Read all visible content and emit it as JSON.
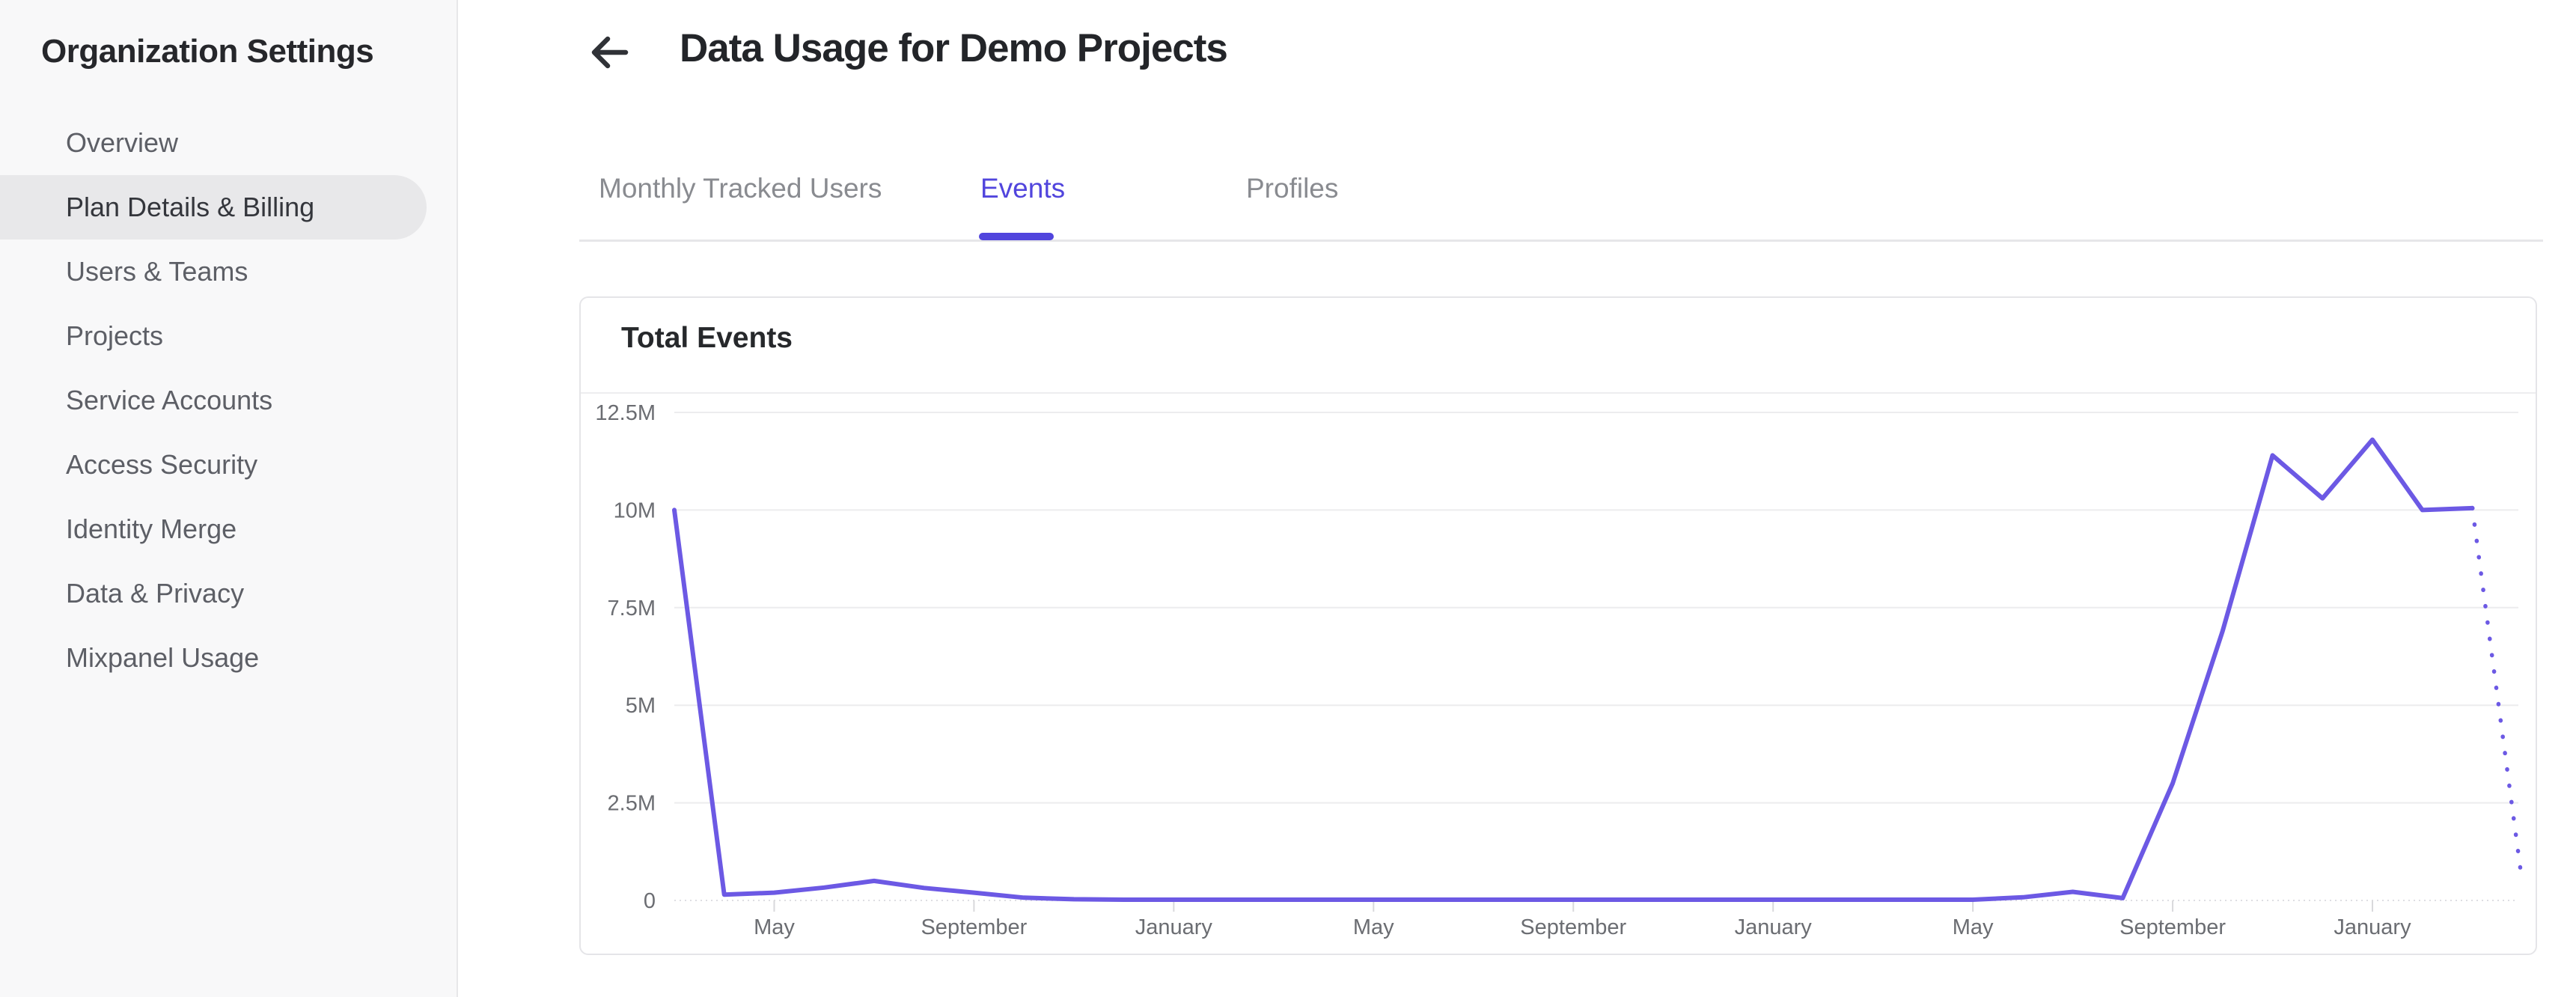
{
  "colors": {
    "accent": "#5145DD",
    "chart_line": "#6C59E4",
    "sidebar_bg": "#f8f8f9",
    "selected_pill": "#e8e8ea",
    "grid_line": "#ececee",
    "axis_text": "#6b6d72",
    "muted_text": "#898b90",
    "heading_text": "#232529"
  },
  "sidebar": {
    "title": "Organization Settings",
    "items": [
      {
        "label": "Overview",
        "selected": false
      },
      {
        "label": "Plan Details & Billing",
        "selected": true
      },
      {
        "label": "Users & Teams",
        "selected": false
      },
      {
        "label": "Projects",
        "selected": false
      },
      {
        "label": "Service Accounts",
        "selected": false
      },
      {
        "label": "Access Security",
        "selected": false
      },
      {
        "label": "Identity Merge",
        "selected": false
      },
      {
        "label": "Data & Privacy",
        "selected": false
      },
      {
        "label": "Mixpanel Usage",
        "selected": false
      }
    ]
  },
  "header": {
    "title": "Data Usage for Demo Projects"
  },
  "tabs": [
    {
      "label": "Monthly Tracked Users",
      "active": false
    },
    {
      "label": "Events",
      "active": true
    },
    {
      "label": "Profiles",
      "active": false
    }
  ],
  "card": {
    "title": "Total Events"
  },
  "chart_data": {
    "type": "line",
    "title": "Total Events",
    "ylabel": "",
    "xlabel": "",
    "ylim_millions": [
      0,
      12.5
    ],
    "grid": true,
    "y_tick_labels": [
      "12.5M",
      "10M",
      "7.5M",
      "5M",
      "2.5M",
      "0"
    ],
    "y_tick_values_millions": [
      12.5,
      10,
      7.5,
      5,
      2.5,
      0
    ],
    "x_tick_labels": [
      "May",
      "September",
      "January",
      "May",
      "September",
      "January",
      "May",
      "September",
      "January"
    ],
    "x_unit": "month",
    "x_first_tick_index": 2,
    "x_tick_every": 4,
    "series": [
      {
        "name": "Total Events",
        "values_millions": [
          10,
          0.15,
          0.2,
          0.33,
          0.5,
          0.32,
          0.2,
          0.07,
          0.03,
          0.02,
          0.02,
          0.02,
          0.02,
          0.02,
          0.02,
          0.02,
          0.02,
          0.02,
          0.02,
          0.02,
          0.02,
          0.02,
          0.02,
          0.02,
          0.02,
          0.02,
          0.02,
          0.08,
          0.22,
          0.06,
          3.0,
          6.9,
          11.4,
          10.3,
          11.8,
          10.0,
          10.05,
          0.45
        ],
        "dotted_from_index": 36,
        "dotted_note": "final segment rendered as dotted projection"
      }
    ]
  }
}
